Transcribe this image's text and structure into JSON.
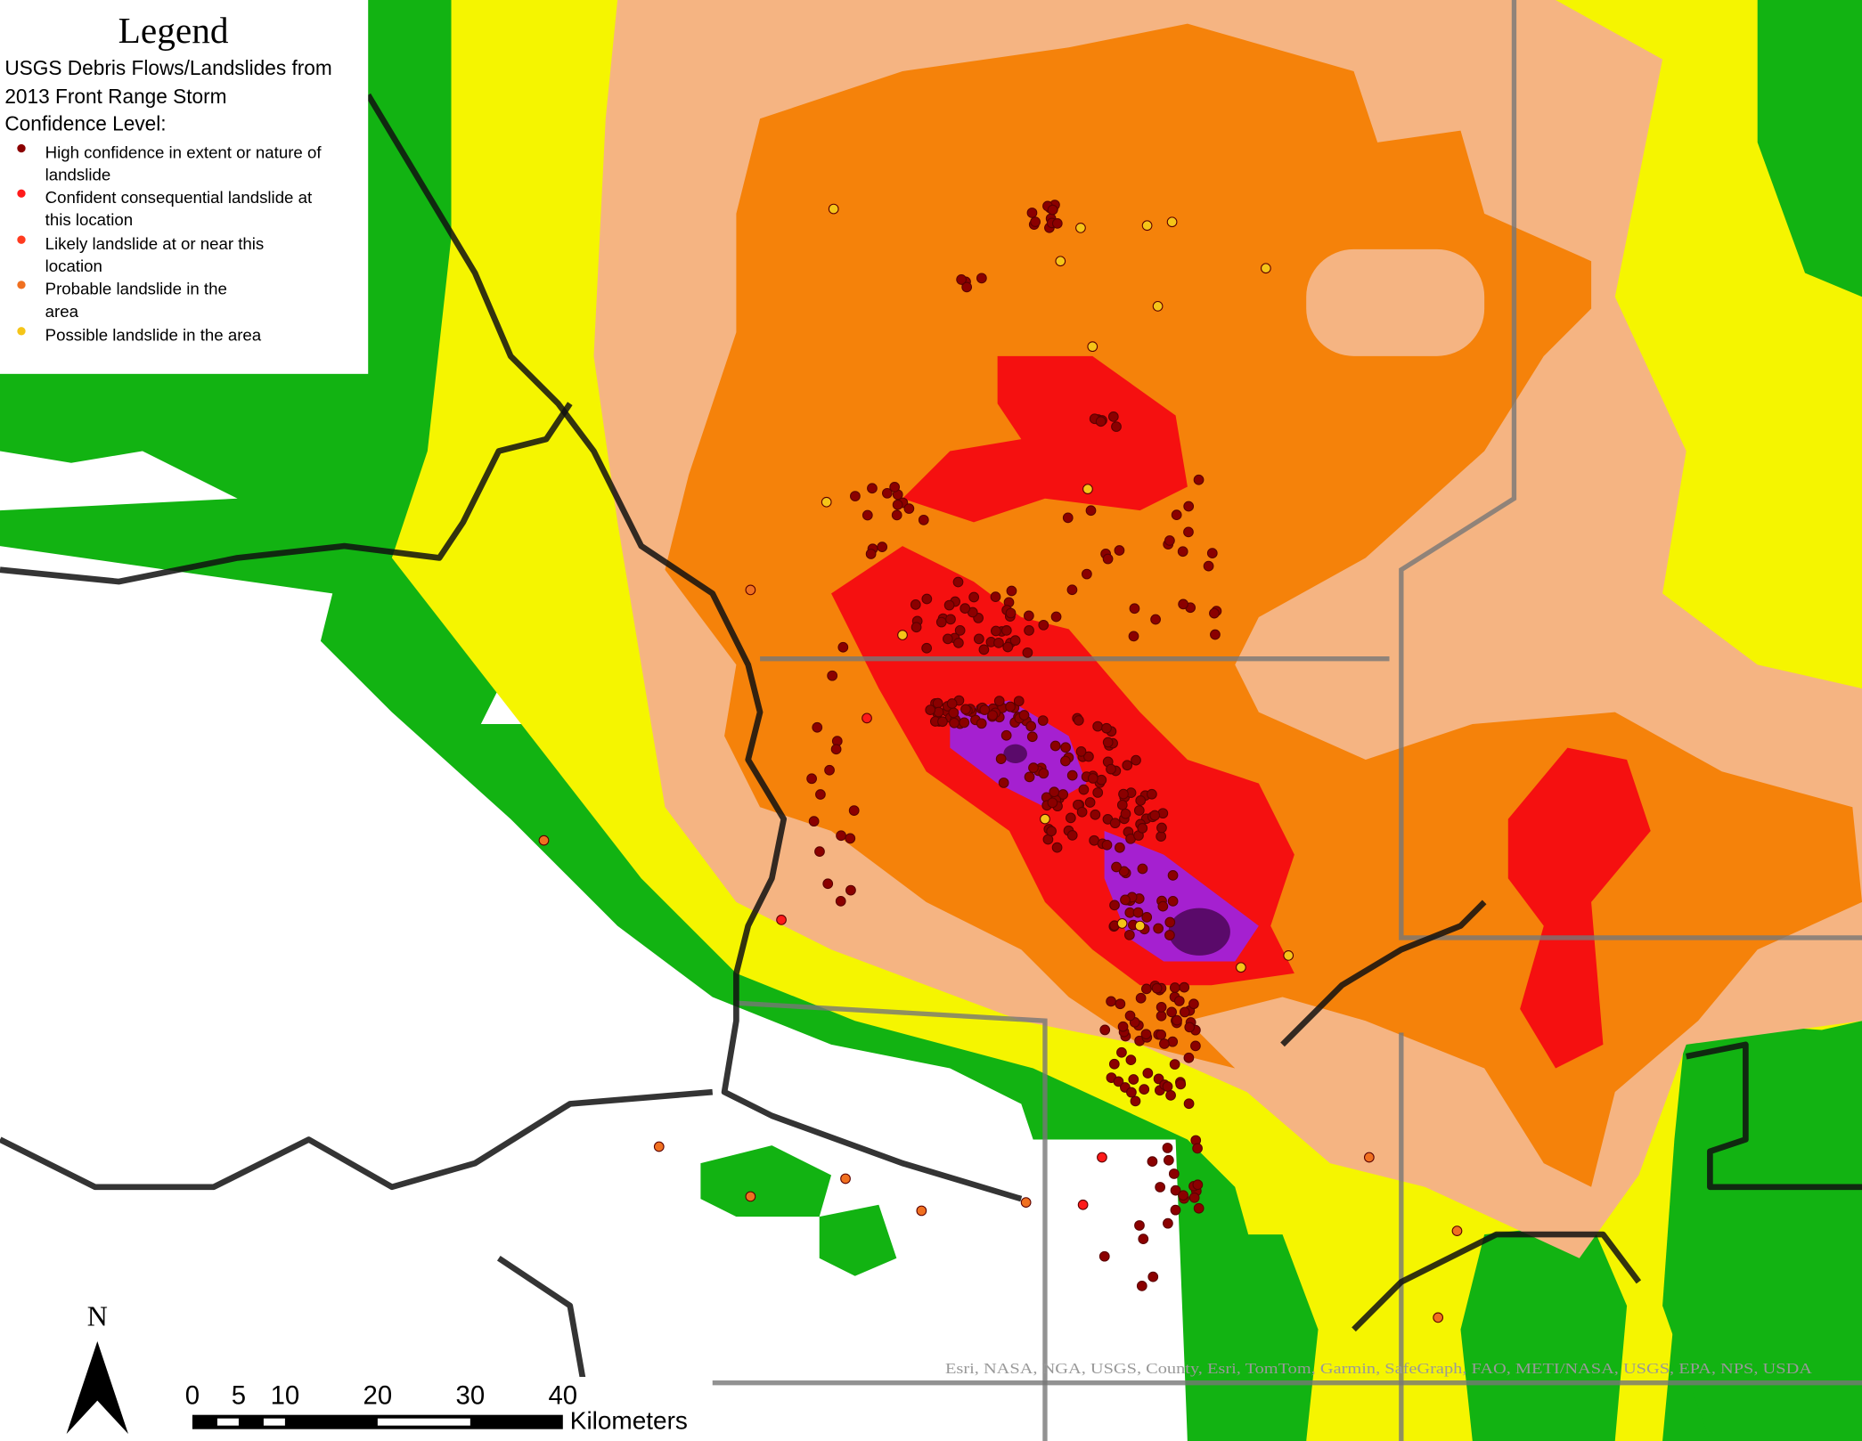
{
  "legend": {
    "title": "Legend",
    "heading": [
      "USGS Debris Flows/Landslides from",
      "2013 Front Range Storm",
      "Confidence Level:"
    ],
    "items": [
      {
        "lines": [
          "High confidence in extent or nature of",
          "landslide"
        ],
        "color": "#8b0000"
      },
      {
        "lines": [
          "Confident consequential landslide at",
          "this location"
        ],
        "color": "#ff1a1a"
      },
      {
        "lines": [
          "Likely landslide at or near this",
          "location"
        ],
        "color": "#ff3b1f"
      },
      {
        "lines": [
          "Probable landslide in the",
          "area"
        ],
        "color": "#f07020"
      },
      {
        "lines": [
          "Possible landslide in the area"
        ],
        "color": "#f5c518"
      }
    ]
  },
  "north_arrow": "N",
  "scale_bar": {
    "labels": [
      "0",
      "5",
      "10",
      "20",
      "30",
      "40"
    ],
    "unit": "Kilometers"
  },
  "attribution": "Esri, NASA, NGA, USGS, County, Esri, TomTom, Garmin, SafeGraph, FAO, METI/NASA, USGS, EPA, NPS, USDA"
}
